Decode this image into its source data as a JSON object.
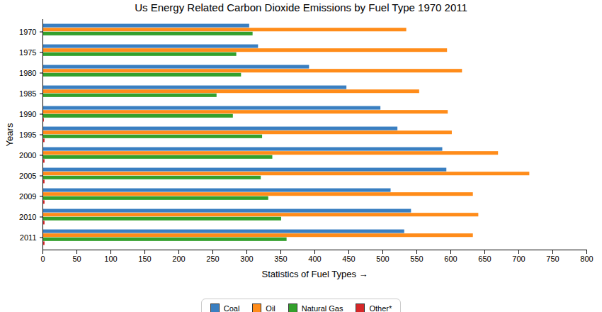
{
  "chart_data": {
    "type": "bar",
    "orientation": "horizontal",
    "title": "Us Energy Related Carbon Dioxide Emissions by Fuel Type 1970 2011",
    "x_label": "Statistics of Fuel Types",
    "y_label": "Years",
    "categories": [
      "1970",
      "1975",
      "1980",
      "1985",
      "1990",
      "1995",
      "2000",
      "2005",
      "2009",
      "2010",
      "2011"
    ],
    "series": [
      {
        "name": "Coal",
        "color": "#3a7fc1",
        "values": [
          304,
          317,
          392,
          447,
          497,
          522,
          588,
          594,
          512,
          542,
          532
        ]
      },
      {
        "name": "Oil",
        "color": "#ff8c1a",
        "values": [
          535,
          595,
          617,
          554,
          596,
          602,
          670,
          716,
          633,
          641,
          633
        ]
      },
      {
        "name": "Natural Gas",
        "color": "#33a02c",
        "values": [
          309,
          285,
          292,
          256,
          280,
          323,
          338,
          321,
          332,
          351,
          359
        ]
      },
      {
        "name": "Other*",
        "color": "#d62728",
        "values": [
          0,
          0,
          0,
          0,
          2,
          3,
          3,
          3,
          3,
          3,
          3
        ]
      }
    ],
    "xlim": [
      0,
      800
    ],
    "xticks": [
      0,
      50,
      100,
      150,
      200,
      250,
      300,
      350,
      400,
      450,
      500,
      550,
      600,
      650,
      700,
      750,
      800
    ],
    "grid": false,
    "legend": "bottom"
  }
}
